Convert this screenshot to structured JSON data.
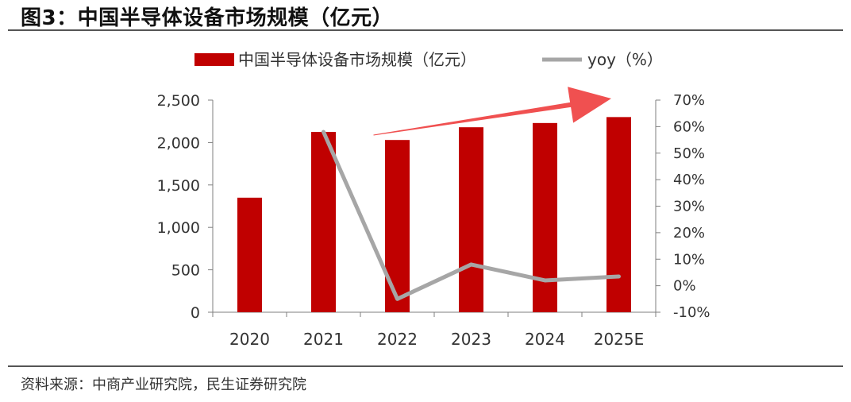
{
  "figure": {
    "title": "图3：中国半导体设备市场规模（亿元）",
    "source": "资料来源：中商产业研究院，民生证券研究院"
  },
  "colors": {
    "bar": "#C00000",
    "line": "#A6A6A6",
    "arrow": "#F05050",
    "axis": "#7f7f7f"
  },
  "chart_data": {
    "type": "bar",
    "title": "中国半导体设备市场规模（亿元）",
    "categories": [
      "2020",
      "2021",
      "2022",
      "2023",
      "2024",
      "2025E"
    ],
    "series": [
      {
        "name": "中国半导体设备市场规模（亿元）",
        "type": "bar",
        "axis": "left",
        "values": [
          1350,
          2125,
          2030,
          2180,
          2230,
          2300
        ]
      },
      {
        "name": "yoy（%）",
        "type": "line",
        "axis": "right",
        "values": [
          null,
          58,
          -5,
          8,
          2,
          3.5
        ]
      }
    ],
    "y_left": {
      "range": [
        0,
        2500
      ],
      "ticks": [
        "2,500",
        "2,000",
        "1,500",
        "1,000",
        "500",
        "0"
      ],
      "tick_values": [
        2500,
        2000,
        1500,
        1000,
        500,
        0
      ]
    },
    "y_right": {
      "range": [
        -10,
        70
      ],
      "ticks": [
        "70%",
        "60%",
        "50%",
        "40%",
        "30%",
        "20%",
        "10%",
        "0%",
        "-10%"
      ],
      "tick_values": [
        70,
        60,
        50,
        40,
        30,
        20,
        10,
        0,
        -10
      ]
    },
    "legend": {
      "position": "top",
      "bar_label": "中国半导体设备市场规模（亿元）",
      "line_label": "yoy（%）"
    },
    "annotations": [
      "upward-trend-arrow"
    ],
    "grid": false
  }
}
